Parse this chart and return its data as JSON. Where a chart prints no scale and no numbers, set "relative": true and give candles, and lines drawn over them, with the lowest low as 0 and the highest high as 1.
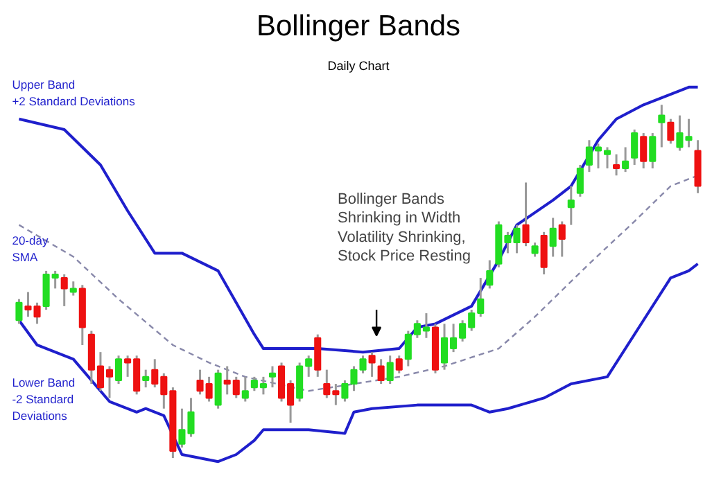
{
  "chart_data": {
    "type": "candlestick",
    "title": "Bollinger Bands",
    "subtitle": "Daily Chart",
    "relative": true,
    "grid": false,
    "categories": [
      null,
      null,
      null,
      null,
      null,
      null,
      null,
      null,
      null,
      null,
      null,
      null,
      null,
      null,
      null,
      null,
      null,
      null,
      null,
      null,
      null,
      null,
      null,
      null,
      null,
      null,
      null,
      null,
      null,
      null,
      null,
      null,
      null,
      null,
      null,
      null,
      null,
      null,
      null,
      null,
      null,
      null,
      null,
      null,
      null,
      null,
      null,
      null,
      null,
      null,
      null,
      null,
      null,
      null,
      null,
      null,
      null,
      null,
      null,
      null,
      null,
      null,
      null,
      null,
      null,
      null,
      null,
      null,
      null,
      null,
      null,
      null,
      null,
      null,
      null,
      null
    ],
    "ohlc": [
      [
        0.39,
        0.45,
        0.38,
        0.44
      ],
      [
        0.43,
        0.47,
        0.4,
        0.42
      ],
      [
        0.43,
        0.44,
        0.38,
        0.4
      ],
      [
        0.43,
        0.53,
        0.42,
        0.52
      ],
      [
        0.51,
        0.53,
        0.48,
        0.52
      ],
      [
        0.51,
        0.52,
        0.43,
        0.48
      ],
      [
        0.47,
        0.5,
        0.46,
        0.48
      ],
      [
        0.48,
        0.49,
        0.32,
        0.37
      ],
      [
        0.35,
        0.36,
        0.21,
        0.25
      ],
      [
        0.26,
        0.3,
        0.19,
        0.2
      ],
      [
        0.25,
        0.26,
        0.17,
        0.23
      ],
      [
        0.22,
        0.29,
        0.21,
        0.28
      ],
      [
        0.28,
        0.29,
        0.23,
        0.27
      ],
      [
        0.28,
        0.29,
        0.18,
        0.19
      ],
      [
        0.22,
        0.25,
        0.2,
        0.23
      ],
      [
        0.25,
        0.28,
        0.2,
        0.21
      ],
      [
        0.23,
        0.24,
        0.14,
        0.18
      ],
      [
        0.19,
        0.2,
        0.0,
        0.02
      ],
      [
        0.04,
        0.14,
        0.03,
        0.08
      ],
      [
        0.07,
        0.17,
        0.06,
        0.13
      ],
      [
        0.22,
        0.25,
        0.18,
        0.19
      ],
      [
        0.21,
        0.23,
        0.16,
        0.17
      ],
      [
        0.15,
        0.25,
        0.14,
        0.24
      ],
      [
        0.22,
        0.26,
        0.18,
        0.21
      ],
      [
        0.22,
        0.23,
        0.17,
        0.18
      ],
      [
        0.17,
        0.23,
        0.16,
        0.19
      ],
      [
        0.2,
        0.23,
        0.19,
        0.22
      ],
      [
        0.2,
        0.23,
        0.18,
        0.21
      ],
      [
        0.23,
        0.26,
        0.2,
        0.24
      ],
      [
        0.26,
        0.27,
        0.16,
        0.17
      ],
      [
        0.21,
        0.22,
        0.1,
        0.15
      ],
      [
        0.17,
        0.27,
        0.16,
        0.26
      ],
      [
        0.26,
        0.29,
        0.23,
        0.28
      ],
      [
        0.34,
        0.35,
        0.23,
        0.25
      ],
      [
        0.21,
        0.25,
        0.17,
        0.18
      ],
      [
        0.19,
        0.21,
        0.15,
        0.18
      ],
      [
        0.17,
        0.22,
        0.16,
        0.21
      ],
      [
        0.21,
        0.26,
        0.19,
        0.25
      ],
      [
        0.25,
        0.29,
        0.24,
        0.28
      ],
      [
        0.29,
        0.3,
        0.23,
        0.27
      ],
      [
        0.26,
        0.28,
        0.21,
        0.22
      ],
      [
        0.22,
        0.29,
        0.21,
        0.27
      ],
      [
        0.28,
        0.29,
        0.24,
        0.25
      ],
      [
        0.28,
        0.36,
        0.26,
        0.35
      ],
      [
        0.35,
        0.39,
        0.34,
        0.38
      ],
      [
        0.36,
        0.41,
        0.34,
        0.37
      ],
      [
        0.37,
        0.38,
        0.24,
        0.25
      ],
      [
        0.27,
        0.38,
        0.25,
        0.34
      ],
      [
        0.31,
        0.38,
        0.3,
        0.34
      ],
      [
        0.34,
        0.39,
        0.33,
        0.38
      ],
      [
        0.37,
        0.42,
        0.36,
        0.41
      ],
      [
        0.41,
        0.51,
        0.4,
        0.45
      ],
      [
        0.49,
        0.56,
        0.48,
        0.53
      ],
      [
        0.55,
        0.67,
        0.54,
        0.66
      ],
      [
        0.61,
        0.64,
        0.58,
        0.63
      ],
      [
        0.61,
        0.66,
        0.58,
        0.65
      ],
      [
        0.66,
        0.78,
        0.6,
        0.61
      ],
      [
        0.58,
        0.61,
        0.57,
        0.6
      ],
      [
        0.63,
        0.64,
        0.52,
        0.54
      ],
      [
        0.6,
        0.68,
        0.57,
        0.65
      ],
      [
        0.66,
        0.67,
        0.57,
        0.62
      ],
      [
        0.71,
        0.77,
        0.66,
        0.73
      ],
      [
        0.75,
        0.83,
        0.74,
        0.82
      ],
      [
        0.83,
        0.9,
        0.81,
        0.88
      ],
      [
        0.87,
        0.89,
        0.82,
        0.88
      ],
      [
        0.86,
        0.88,
        0.82,
        0.87
      ],
      [
        0.83,
        0.86,
        0.8,
        0.82
      ],
      [
        0.82,
        0.88,
        0.81,
        0.84
      ],
      [
        0.85,
        0.93,
        0.83,
        0.92
      ],
      [
        0.91,
        0.92,
        0.82,
        0.84
      ],
      [
        0.84,
        0.92,
        0.82,
        0.91
      ],
      [
        0.95,
        1.0,
        0.88,
        0.97
      ],
      [
        0.95,
        0.96,
        0.89,
        0.9
      ],
      [
        0.88,
        0.97,
        0.87,
        0.92
      ],
      [
        0.9,
        0.96,
        0.88,
        0.91
      ],
      [
        0.87,
        0.9,
        0.75,
        0.77
      ]
    ],
    "colors": [
      "#22dd22",
      "#ee1111",
      "#ee1111",
      "#22dd22",
      "#22dd22",
      "#ee1111",
      "#22dd22",
      "#ee1111",
      "#ee1111",
      "#ee1111",
      "#ee1111",
      "#22dd22",
      "#ee1111",
      "#ee1111",
      "#22dd22",
      "#ee1111",
      "#ee1111",
      "#ee1111",
      "#22dd22",
      "#22dd22",
      "#ee1111",
      "#ee1111",
      "#22dd22",
      "#ee1111",
      "#ee1111",
      "#22dd22",
      "#22dd22",
      "#22dd22",
      "#22dd22",
      "#ee1111",
      "#ee1111",
      "#22dd22",
      "#22dd22",
      "#ee1111",
      "#ee1111",
      "#ee1111",
      "#22dd22",
      "#22dd22",
      "#22dd22",
      "#ee1111",
      "#ee1111",
      "#22dd22",
      "#ee1111",
      "#22dd22",
      "#22dd22",
      "#22dd22",
      "#ee1111",
      "#22dd22",
      "#22dd22",
      "#22dd22",
      "#22dd22",
      "#22dd22",
      "#22dd22",
      "#22dd22",
      "#22dd22",
      "#22dd22",
      "#ee1111",
      "#22dd22",
      "#ee1111",
      "#22dd22",
      "#ee1111",
      "#22dd22",
      "#22dd22",
      "#22dd22",
      "#22dd22",
      "#22dd22",
      "#ee1111",
      "#22dd22",
      "#22dd22",
      "#ee1111",
      "#22dd22",
      "#22dd22",
      "#ee1111",
      "#22dd22",
      "#22dd22",
      "#ee1111"
    ],
    "series": [
      {
        "type": "line",
        "name": "Upper Band\n+2 Standard Deviations",
        "color": "#1f1fcc",
        "values": [
          0.96,
          null,
          null,
          null,
          null,
          0.93,
          null,
          null,
          null,
          0.83,
          null,
          null,
          0.7,
          null,
          null,
          0.58,
          null,
          null,
          0.58,
          null,
          null,
          null,
          0.53,
          null,
          null,
          null,
          0.35,
          0.31,
          null,
          null,
          null,
          null,
          null,
          0.31,
          null,
          null,
          null,
          null,
          0.3,
          null,
          null,
          null,
          0.31,
          null,
          0.37,
          null,
          0.38,
          null,
          null,
          null,
          0.43,
          null,
          null,
          0.56,
          null,
          0.66,
          null,
          null,
          null,
          0.73,
          null,
          0.77,
          null,
          null,
          0.9,
          null,
          0.96,
          null,
          null,
          1.0,
          null,
          null,
          null,
          null,
          1.05,
          1.05
        ]
      },
      {
        "type": "line",
        "name": "20-day\nSMA",
        "color": "#8888aa",
        "line_style": "dashed",
        "values": [
          0.66,
          null,
          null,
          null,
          null,
          null,
          0.57,
          null,
          null,
          null,
          null,
          0.45,
          null,
          null,
          null,
          null,
          null,
          0.32,
          null,
          null,
          null,
          0.27,
          null,
          null,
          null,
          0.23,
          null,
          null,
          null,
          null,
          null,
          null,
          0.19,
          null,
          null,
          null,
          null,
          0.21,
          null,
          null,
          null,
          null,
          0.23,
          null,
          null,
          null,
          null,
          0.26,
          null,
          null,
          null,
          null,
          null,
          0.31,
          null,
          null,
          null,
          0.4,
          null,
          null,
          null,
          null,
          null,
          0.55,
          null,
          null,
          null,
          null,
          0.67,
          null,
          null,
          null,
          0.77,
          null,
          null,
          0.8
        ]
      },
      {
        "type": "line",
        "name": "Lower Band\n-2 Standard\nDeviations",
        "color": "#1f1fcc",
        "values": [
          0.39,
          null,
          0.32,
          null,
          null,
          null,
          0.28,
          0.25,
          null,
          null,
          0.16,
          null,
          null,
          0.13,
          0.14,
          null,
          0.12,
          null,
          0.01,
          null,
          null,
          null,
          -0.01,
          null,
          0.01,
          null,
          0.05,
          0.08,
          null,
          null,
          null,
          null,
          0.08,
          null,
          null,
          null,
          0.07,
          0.13,
          null,
          0.14,
          null,
          null,
          null,
          null,
          0.15,
          null,
          null,
          null,
          null,
          null,
          0.15,
          null,
          0.13,
          null,
          0.14,
          null,
          null,
          null,
          0.17,
          null,
          null,
          0.21,
          null,
          null,
          null,
          0.23,
          null,
          null,
          null,
          0.39,
          null,
          null,
          0.51,
          null,
          0.53,
          0.55
        ]
      }
    ],
    "annotations": [
      "Bollinger Bands\nShrinking in Width\nVolatility Shrinking,\nStock Price Resting"
    ]
  }
}
